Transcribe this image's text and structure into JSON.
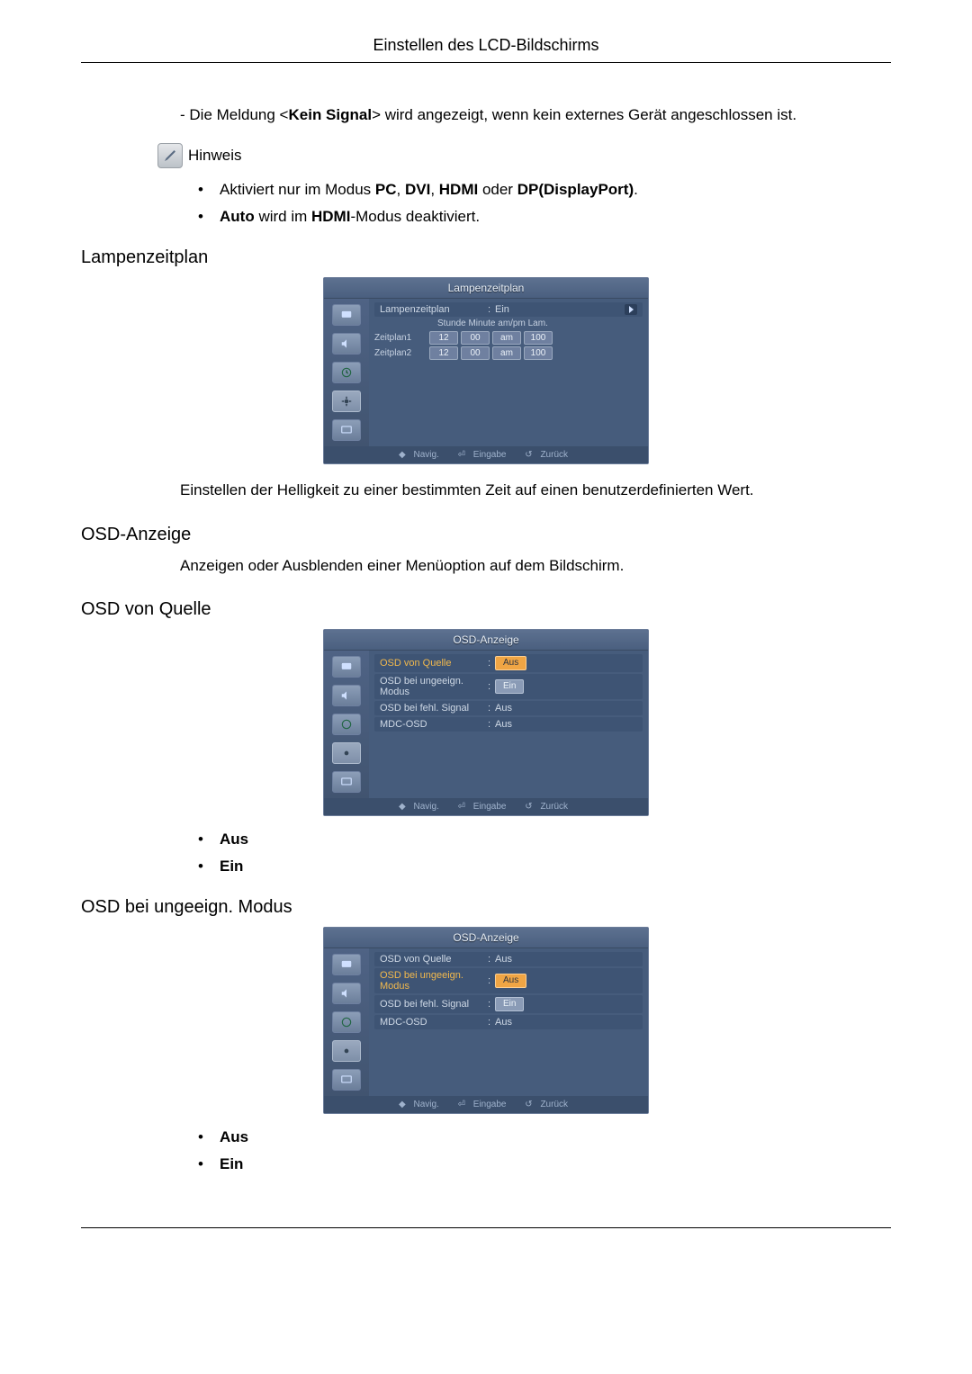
{
  "page_title": "Einstellen des LCD-Bildschirms",
  "intro_line_prefix": "- Die Meldung <",
  "intro_signal": "Kein Signal",
  "intro_line_suffix": "> wird angezeigt, wenn kein externes Gerät angeschlossen ist.",
  "hinweis_label": "Hinweis",
  "bullets1": {
    "b1_pre": "Aktiviert nur im Modus ",
    "b1_pc": "PC",
    "b1_sep1": ", ",
    "b1_dvi": "DVI",
    "b1_sep2": ", ",
    "b1_hdmi": "HDMI",
    "b1_or": " oder ",
    "b1_dp": "DP(DisplayPort)",
    "b1_end": ".",
    "b2_auto": "Auto",
    "b2_mid": " wird im ",
    "b2_hdmi": "HDMI",
    "b2_end": "-Modus deaktiviert."
  },
  "h_lampen": "Lampenzeitplan",
  "lamp_osd": {
    "title": "Lampenzeitplan",
    "row_label": "Lampenzeitplan",
    "row_value": "Ein",
    "head": "Stunde Minute am/pm  Lam.",
    "rows": [
      {
        "label": "Zeitplan1",
        "h": "12",
        "m": "00",
        "ap": "am",
        "lam": "100"
      },
      {
        "label": "Zeitplan2",
        "h": "12",
        "m": "00",
        "ap": "am",
        "lam": "100"
      }
    ],
    "footer": {
      "nav": "Navig.",
      "enter": "Eingabe",
      "back": "Zurück"
    }
  },
  "lamp_desc": "Einstellen der Helligkeit zu einer bestimmten Zeit auf einen benutzerdefinierten Wert.",
  "h_osd_anzeige": "OSD-Anzeige",
  "osd_anzeige_desc": "Anzeigen oder Ausblenden einer Menüoption auf dem Bildschirm.",
  "h_osd_quelle": "OSD von Quelle",
  "osd_quelle": {
    "title": "OSD-Anzeige",
    "rows": [
      {
        "label": "OSD von Quelle",
        "value": "Aus",
        "hl": true,
        "sel": true
      },
      {
        "label": "OSD bei ungeeign. Modus",
        "value": "Ein",
        "pill": true
      },
      {
        "label": "OSD bei fehl. Signal",
        "value": "Aus"
      },
      {
        "label": "MDC-OSD",
        "value": "Aus"
      }
    ],
    "footer": {
      "nav": "Navig.",
      "enter": "Eingabe",
      "back": "Zurück"
    }
  },
  "opts1": [
    "Aus",
    "Ein"
  ],
  "h_osd_modus": "OSD bei ungeeign. Modus",
  "osd_modus": {
    "title": "OSD-Anzeige",
    "rows": [
      {
        "label": "OSD von Quelle",
        "value": "Aus"
      },
      {
        "label": "OSD bei ungeeign. Modus",
        "value": "Aus",
        "hl": true,
        "sel": true
      },
      {
        "label": "OSD bei fehl. Signal",
        "value": "Ein",
        "pill": true
      },
      {
        "label": "MDC-OSD",
        "value": "Aus"
      }
    ],
    "footer": {
      "nav": "Navig.",
      "enter": "Eingabe",
      "back": "Zurück"
    }
  },
  "opts2": [
    "Aus",
    "Ein"
  ],
  "colors": {
    "osd_bg": "#4a5f7f",
    "osd_row": "#3e5474",
    "highlight": "#f2b94d",
    "cell_bg": "#6f80a0"
  }
}
